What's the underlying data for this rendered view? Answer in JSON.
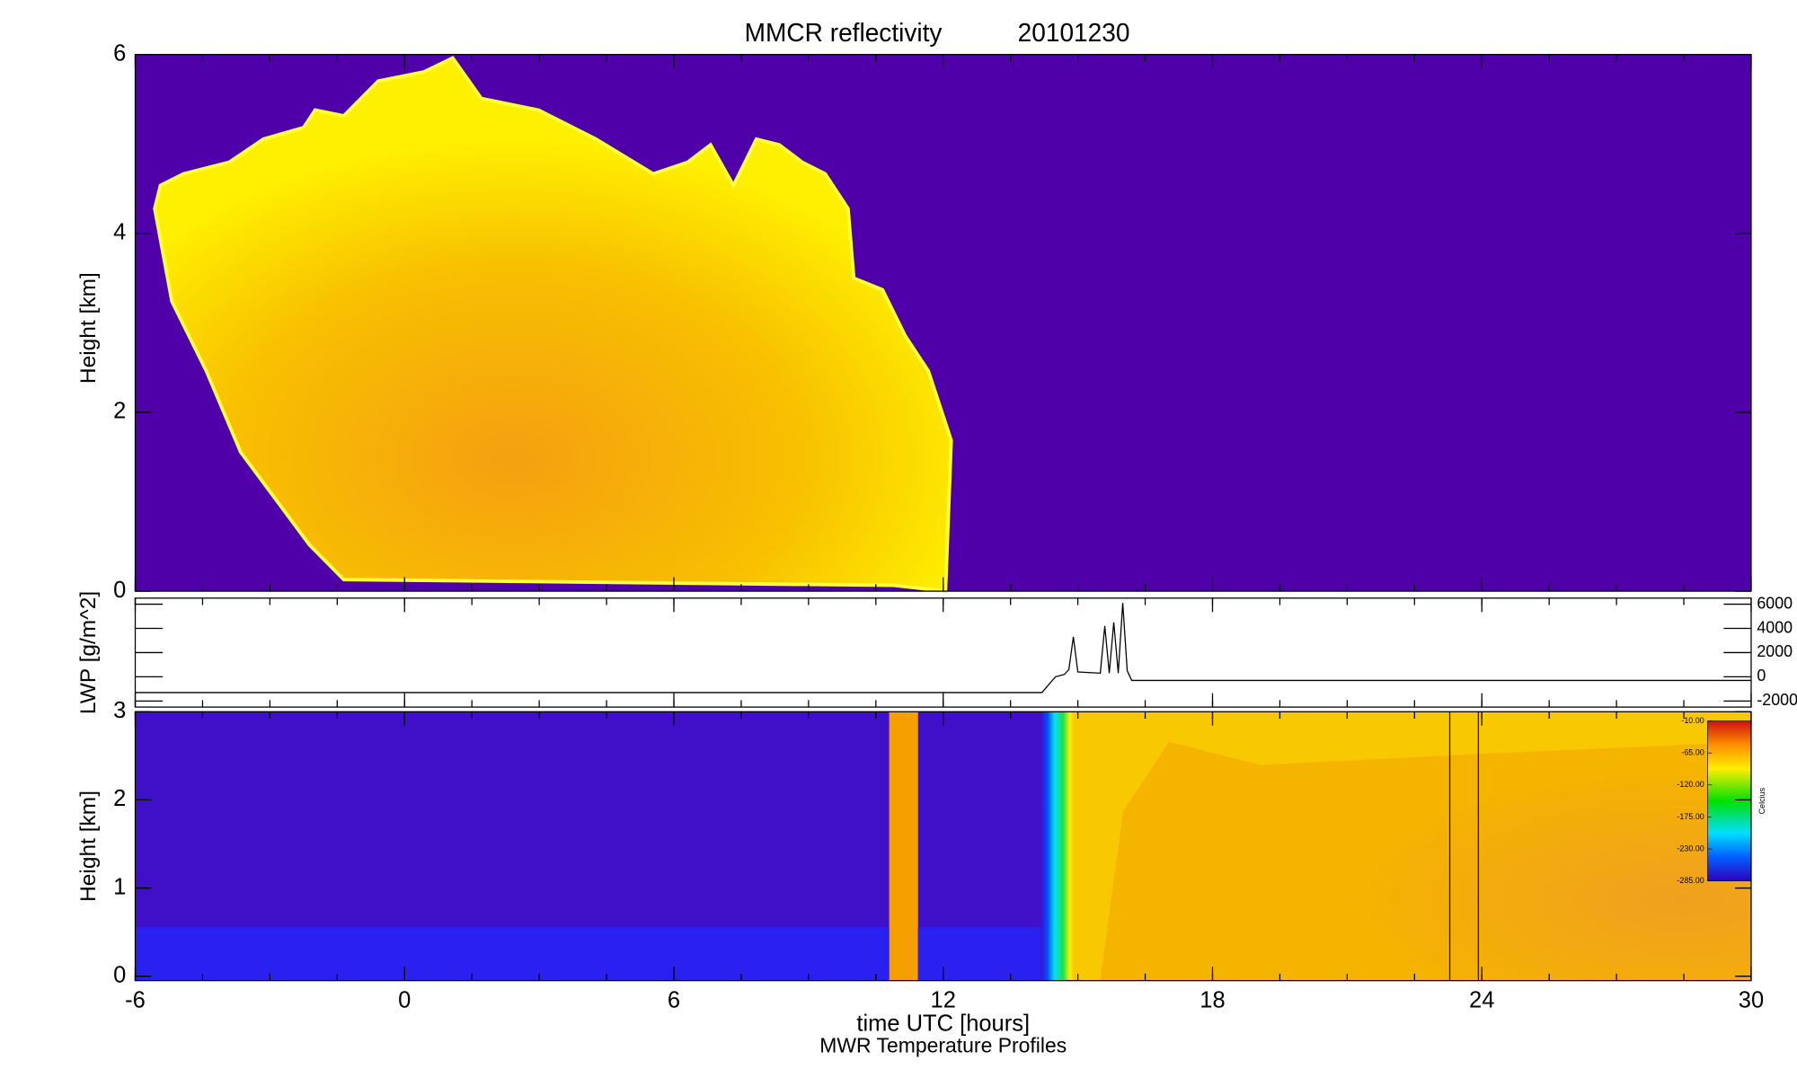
{
  "chart_data": [
    {
      "type": "heatmap",
      "title": "MMCR reflectivity",
      "date": "20101230",
      "ylabel": "Height [km]",
      "ylim": [
        0,
        6
      ],
      "yticks": [
        0,
        2,
        4,
        6
      ]
    },
    {
      "type": "line",
      "ylabel": "LWP [g/m^2]",
      "color": "#000000",
      "x": [
        -6,
        14.2,
        14.5,
        14.7,
        14.8,
        14.9,
        15.0,
        15.5,
        15.6,
        15.7,
        15.8,
        15.9,
        16.0,
        16.1,
        16.2,
        16.3,
        30
      ],
      "values": [
        -1300,
        -1300,
        0,
        200,
        600,
        3300,
        400,
        300,
        4200,
        300,
        4500,
        300,
        6100,
        500,
        -300,
        -300,
        -300
      ],
      "y2lim": [
        -2500,
        6500
      ],
      "y2ticks": [
        6000,
        4000,
        2000,
        0,
        -2000
      ]
    },
    {
      "type": "heatmap",
      "ylabel": "Height [km]",
      "ylim": [
        -0.05,
        3
      ],
      "yticks": [
        0,
        1,
        2,
        3
      ],
      "xlim": [
        -6,
        30
      ],
      "xticks": [
        -6,
        0,
        6,
        12,
        18,
        24,
        30
      ],
      "xlabel": "time UTC [hours]",
      "subtitle": "MWR Temperature Profiles",
      "colorbar_label": "Celcius",
      "colorbar_ticks": [
        {
          "value": -10,
          "label": "-10.00"
        },
        {
          "value": -65,
          "label": "-65.00"
        },
        {
          "value": -120,
          "label": "-120.00"
        },
        {
          "value": -175,
          "label": "-175.00"
        },
        {
          "value": -230,
          "label": "-230.00"
        },
        {
          "value": -285,
          "label": "-285.00"
        }
      ],
      "colorbar_lim": [
        -285,
        -10
      ]
    }
  ]
}
